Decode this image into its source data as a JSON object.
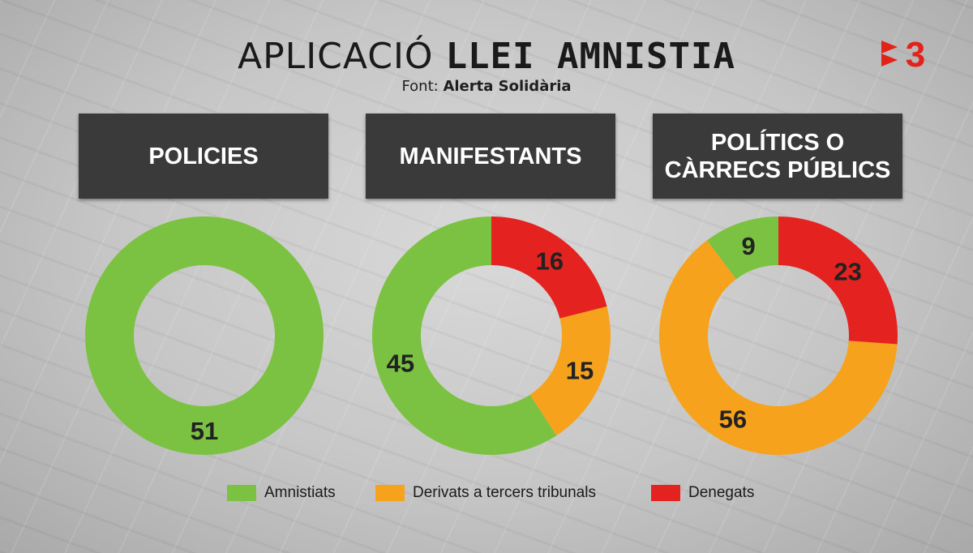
{
  "title": {
    "light": "APLICACIÓ",
    "bold": "LLEI AMNISTIA"
  },
  "source": {
    "prefix": "Font:",
    "name": "Alerta Solidària"
  },
  "logo": {
    "text": "3",
    "icon": "tv3-channel-logo",
    "color": "#e2231a"
  },
  "colors": {
    "Amnistiats": "#7cc242",
    "Derivats a tercers tribunals": "#f7a21c",
    "Denegats": "#e42320"
  },
  "legend": [
    {
      "label": "Amnistiats",
      "color": "#7cc242"
    },
    {
      "label": "Derivats a tercers tribunals",
      "color": "#f7a21c"
    },
    {
      "label": "Denegats",
      "color": "#e42320"
    }
  ],
  "panels": [
    {
      "title_lines": [
        "POLICIES"
      ]
    },
    {
      "title_lines": [
        "MANIFESTANTS"
      ]
    },
    {
      "title_lines": [
        "POLÍTICS O",
        "CÀRRECS PÚBLICS"
      ]
    }
  ],
  "chart_data": [
    {
      "type": "pie",
      "title": "POLICIES",
      "categories": [
        "Amnistiats"
      ],
      "values": [
        51
      ],
      "donut": true
    },
    {
      "type": "pie",
      "title": "MANIFESTANTS",
      "categories": [
        "Amnistiats",
        "Derivats a tercers tribunals",
        "Denegats"
      ],
      "values": [
        45,
        15,
        16
      ],
      "donut": true
    },
    {
      "type": "pie",
      "title": "POLÍTICS O CÀRRECS PÚBLICS",
      "categories": [
        "Amnistiats",
        "Derivats a tercers tribunals",
        "Denegats"
      ],
      "values": [
        9,
        56,
        23
      ],
      "donut": true
    }
  ]
}
